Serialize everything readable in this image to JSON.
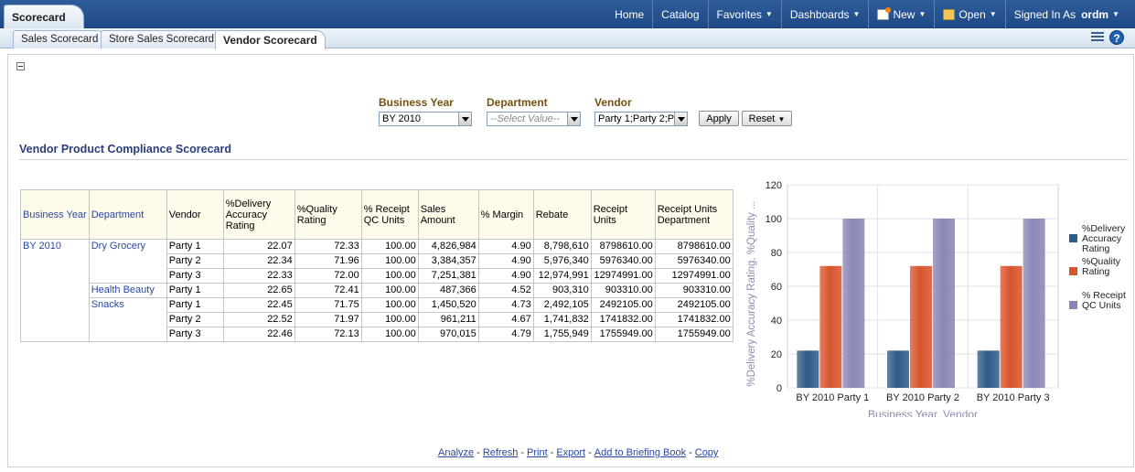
{
  "header": {
    "app_title": "Scorecard",
    "nav": [
      {
        "label": "Home",
        "has_menu": false
      },
      {
        "label": "Catalog",
        "has_menu": false
      },
      {
        "label": "Favorites",
        "has_menu": true
      },
      {
        "label": "Dashboards",
        "has_menu": true
      },
      {
        "label": "New",
        "has_menu": true,
        "icon": "new-document-icon"
      },
      {
        "label": "Open",
        "has_menu": true,
        "icon": "open-folder-icon"
      }
    ],
    "signed_in_label": "Signed In As",
    "user": "ordm",
    "accent_color": "#1e4a85"
  },
  "tabs": [
    {
      "label": "Sales Scorecard",
      "active": false
    },
    {
      "label": "Store Sales Scorecard",
      "active": false
    },
    {
      "label": "Vendor Scorecard",
      "active": true
    }
  ],
  "prompts": {
    "business_year": {
      "label": "Business Year",
      "value": "BY 2010"
    },
    "department": {
      "label": "Department",
      "placeholder": "--Select Value--"
    },
    "vendor": {
      "label": "Vendor",
      "value": "Party 1;Party 2;P"
    },
    "apply_label": "Apply",
    "reset_label": "Reset"
  },
  "section_title": "Vendor Product Compliance Scorecard",
  "table": {
    "headers": [
      "Business Year",
      "Department",
      "Vendor",
      "%Delivery Accuracy Rating",
      "%Quality Rating",
      "% Receipt QC Units",
      "Sales Amount",
      "% Margin",
      "Rebate",
      "Receipt Units",
      "Receipt Units Department"
    ],
    "business_year": "BY 2010",
    "departments": [
      {
        "name": "Dry Grocery",
        "rows": [
          [
            "Party 1",
            "22.07",
            "72.33",
            "100.00",
            "4,826,984",
            "4.90",
            "8,798,610",
            "8798610.00",
            "8798610.00"
          ],
          [
            "Party 2",
            "22.34",
            "71.96",
            "100.00",
            "3,384,357",
            "4.90",
            "5,976,340",
            "5976340.00",
            "5976340.00"
          ],
          [
            "Party 3",
            "22.33",
            "72.00",
            "100.00",
            "7,251,381",
            "4.90",
            "12,974,991",
            "12974991.00",
            "12974991.00"
          ]
        ]
      },
      {
        "name": "Health Beauty",
        "rows": [
          [
            "Party 1",
            "22.65",
            "72.41",
            "100.00",
            "487,366",
            "4.52",
            "903,310",
            "903310.00",
            "903310.00"
          ]
        ]
      },
      {
        "name": "Snacks",
        "rows": [
          [
            "Party 1",
            "22.45",
            "71.75",
            "100.00",
            "1,450,520",
            "4.73",
            "2,492,105",
            "2492105.00",
            "2492105.00"
          ],
          [
            "Party 2",
            "22.52",
            "71.97",
            "100.00",
            "961,211",
            "4.67",
            "1,741,832",
            "1741832.00",
            "1741832.00"
          ],
          [
            "Party 3",
            "22.46",
            "72.13",
            "100.00",
            "970,015",
            "4.79",
            "1,755,949",
            "1755949.00",
            "1755949.00"
          ]
        ]
      }
    ]
  },
  "chart_data": {
    "type": "bar",
    "categories": [
      "BY 2010 Party 1",
      "BY 2010 Party 2",
      "BY 2010 Party 3"
    ],
    "series": [
      {
        "name": "%Delivery Accuracy Rating",
        "values": [
          22,
          22,
          22
        ],
        "color": "#2f5b88"
      },
      {
        "name": "%Quality Rating",
        "values": [
          72,
          72,
          72
        ],
        "color": "#d8542c"
      },
      {
        "name": "% Receipt QC Units",
        "values": [
          100,
          100,
          100
        ],
        "color": "#8a86b8"
      }
    ],
    "xlabel": "Business Year, Vendor",
    "ylabel": "%Delivery Accuracy Rating, %Quality ...",
    "ylim": [
      0,
      120
    ],
    "yticks": [
      "0",
      "20",
      "40",
      "60",
      "80",
      "100",
      "120"
    ],
    "grid": true,
    "legend_position": "right"
  },
  "footer_links": [
    "Analyze",
    "Refresh",
    "Print",
    "Export",
    "Add to Briefing Book",
    "Copy"
  ]
}
